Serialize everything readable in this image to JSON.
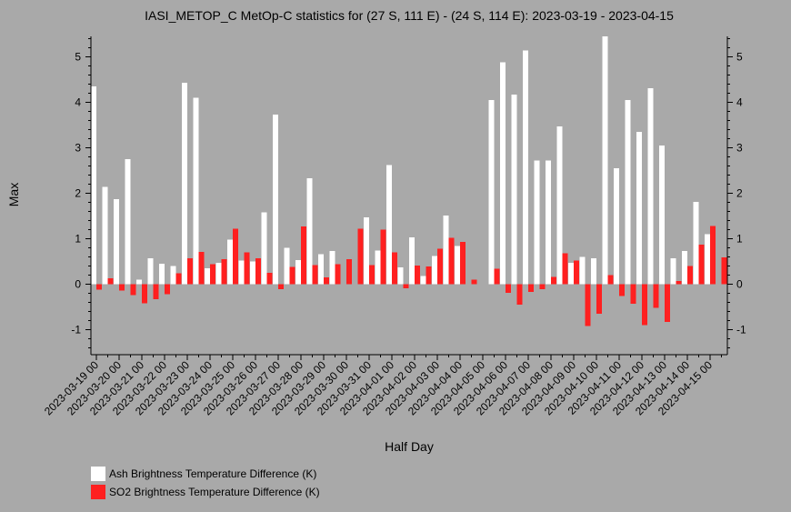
{
  "chart_data": {
    "type": "bar",
    "title": "IASI_METOP_C MetOp-C statistics for (27 S, 111 E) - (24 S, 114 E): 2023-03-19 - 2023-04-15",
    "xlabel": "Half Day",
    "ylabel": "Max",
    "ylim": [
      -1.55,
      5.45
    ],
    "yticks": [
      -1,
      0,
      1,
      2,
      3,
      4,
      5
    ],
    "categories": [
      "2023-03-19 00",
      "2023-03-19 12",
      "2023-03-20 00",
      "2023-03-20 12",
      "2023-03-21 00",
      "2023-03-21 12",
      "2023-03-22 00",
      "2023-03-22 12",
      "2023-03-23 00",
      "2023-03-23 12",
      "2023-03-24 00",
      "2023-03-24 12",
      "2023-03-25 00",
      "2023-03-25 12",
      "2023-03-26 00",
      "2023-03-26 12",
      "2023-03-27 00",
      "2023-03-27 12",
      "2023-03-28 00",
      "2023-03-28 12",
      "2023-03-29 00",
      "2023-03-29 12",
      "2023-03-30 00",
      "2023-03-30 12",
      "2023-03-31 00",
      "2023-03-31 12",
      "2023-04-01 00",
      "2023-04-01 12",
      "2023-04-02 00",
      "2023-04-02 12",
      "2023-04-03 00",
      "2023-04-03 12",
      "2023-04-04 00",
      "2023-04-04 12",
      "2023-04-05 00",
      "2023-04-05 12",
      "2023-04-06 00",
      "2023-04-06 12",
      "2023-04-07 00",
      "2023-04-07 12",
      "2023-04-08 00",
      "2023-04-08 12",
      "2023-04-09 00",
      "2023-04-09 12",
      "2023-04-10 00",
      "2023-04-10 12",
      "2023-04-11 00",
      "2023-04-11 12",
      "2023-04-12 00",
      "2023-04-12 12",
      "2023-04-13 00",
      "2023-04-13 12",
      "2023-04-14 00",
      "2023-04-14 12",
      "2023-04-15 00",
      "2023-04-15 12"
    ],
    "series": [
      {
        "name": "Ash Brightness Temperature Difference (K)",
        "color": "#ffffff",
        "values": [
          4.35,
          2.14,
          1.87,
          2.75,
          0.1,
          0.57,
          0.45,
          0.4,
          4.43,
          4.1,
          0.35,
          0.47,
          0.98,
          0.52,
          0.5,
          1.58,
          3.73,
          0.8,
          0.53,
          2.33,
          0.66,
          0.73,
          null,
          null,
          1.47,
          0.74,
          2.62,
          0.37,
          1.03,
          0.18,
          0.62,
          1.51,
          0.84,
          null,
          null,
          4.05,
          4.88,
          4.17,
          5.14,
          2.72,
          2.72,
          3.47,
          0.47,
          0.6,
          0.57,
          5.45,
          2.55,
          4.05,
          3.35,
          4.31,
          3.05,
          0.57,
          0.73,
          1.81,
          1.1,
          null
        ]
      },
      {
        "name": "SO2 Brightness Temperature Difference (K)",
        "color": "#ff2020",
        "values": [
          -0.12,
          0.13,
          -0.14,
          -0.24,
          -0.42,
          -0.33,
          -0.22,
          0.24,
          0.57,
          0.71,
          0.44,
          0.55,
          1.22,
          0.7,
          0.57,
          0.25,
          -0.11,
          0.38,
          1.27,
          0.42,
          0.15,
          0.44,
          0.55,
          1.22,
          0.42,
          1.2,
          0.7,
          -0.09,
          0.41,
          0.39,
          0.78,
          1.02,
          0.93,
          0.1,
          null,
          0.34,
          -0.19,
          -0.45,
          -0.17,
          -0.11,
          0.16,
          0.68,
          0.52,
          -0.92,
          -0.65,
          0.2,
          -0.26,
          -0.43,
          -0.9,
          -0.52,
          -0.83,
          0.07,
          0.4,
          0.87,
          1.28,
          0.59
        ]
      }
    ],
    "xtick_labels": [
      "2023-03-19 00",
      "2023-03-20 00",
      "2023-03-21 00",
      "2023-03-22 00",
      "2023-03-23 00",
      "2023-03-24 00",
      "2023-03-25 00",
      "2023-03-26 00",
      "2023-03-27 00",
      "2023-03-28 00",
      "2023-03-29 00",
      "2023-03-30 00",
      "2023-03-31 00",
      "2023-04-01 00",
      "2023-04-02 00",
      "2023-04-03 00",
      "2023-04-04 00",
      "2023-04-05 00",
      "2023-04-06 00",
      "2023-04-07 00",
      "2023-04-08 00",
      "2023-04-09 00",
      "2023-04-10 00",
      "2023-04-11 00",
      "2023-04-12 00",
      "2023-04-13 00",
      "2023-04-14 00",
      "2023-04-15 00"
    ],
    "legend_placement": "bottom-left",
    "grid": false
  }
}
